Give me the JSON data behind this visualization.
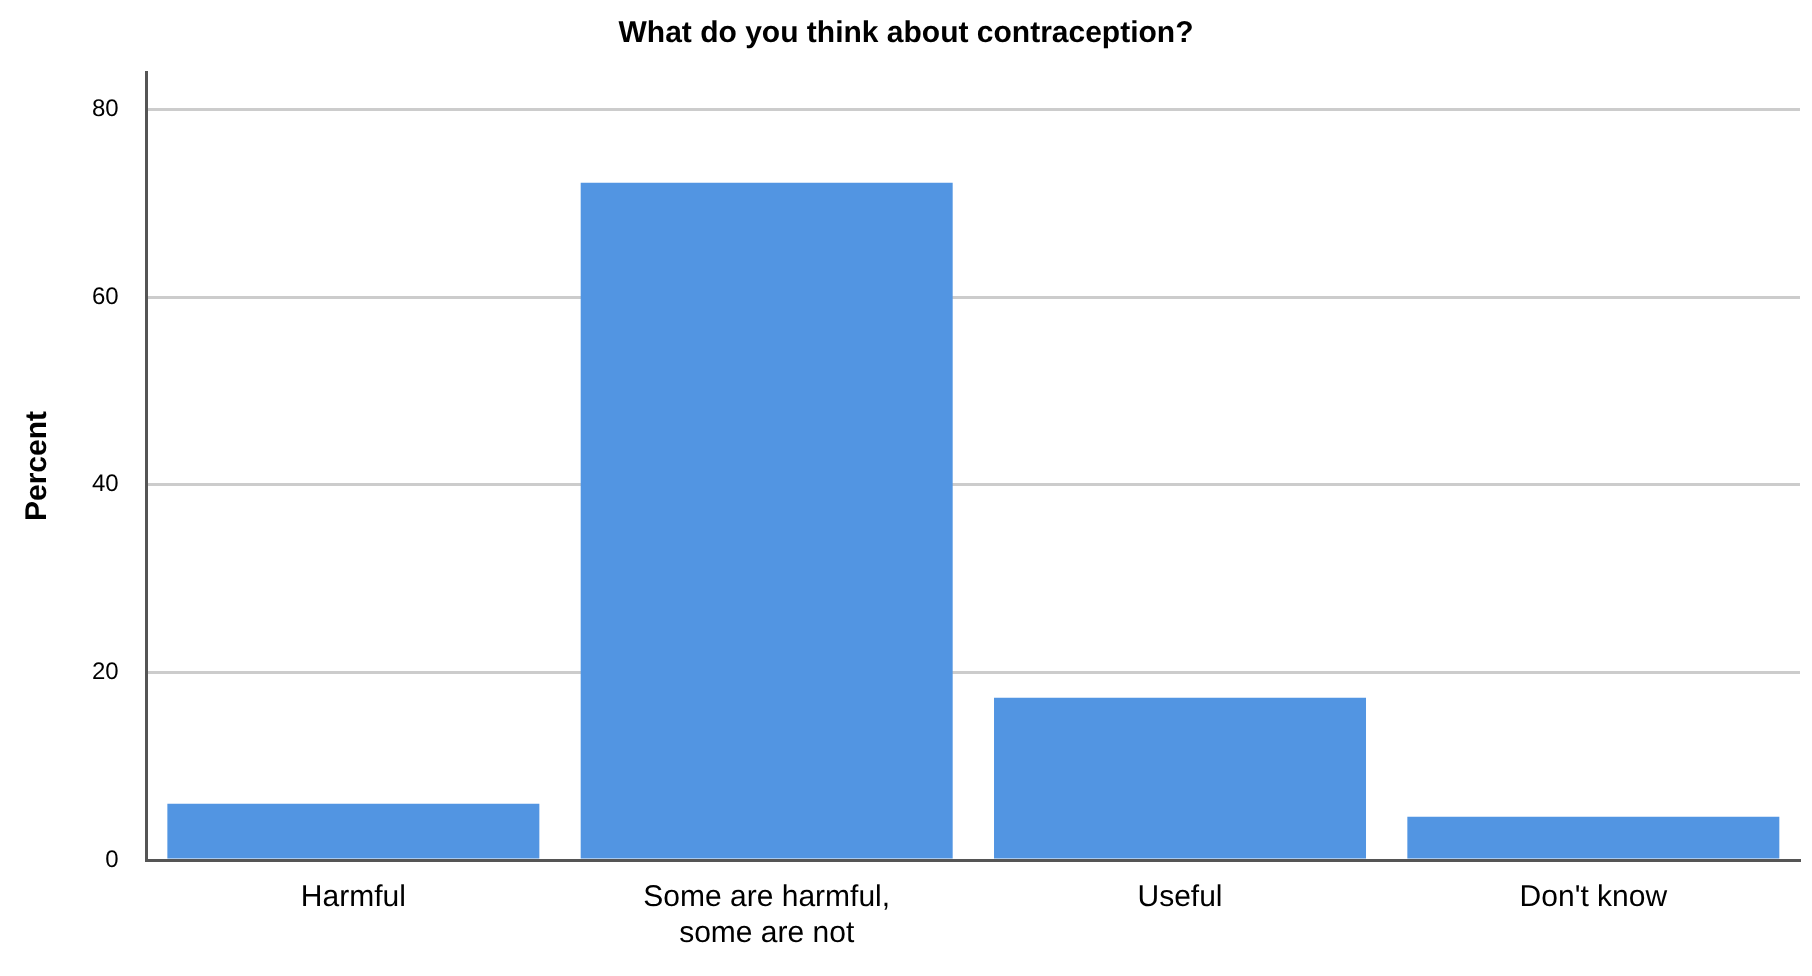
{
  "chart_data": {
    "type": "bar",
    "title": "What do you think about contraception?",
    "ylabel": "Percent",
    "categories": [
      "Harmful",
      "Some are harmful, some are not",
      "Useful",
      "Don't know"
    ],
    "values": [
      6.0,
      72.2,
      17.3,
      4.6
    ],
    "color": "#5295e2",
    "ylim": [
      0,
      84
    ],
    "yticks": [
      0,
      20,
      40,
      60,
      80
    ],
    "grid": "y"
  }
}
